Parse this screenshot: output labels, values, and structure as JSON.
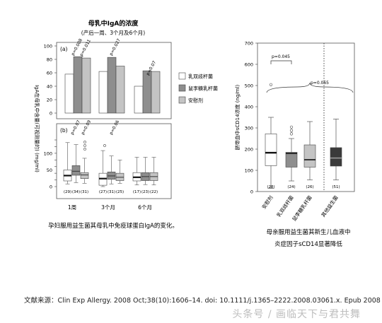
{
  "chart_data": [
    {
      "type": "bar",
      "panel": "a",
      "title": "母乳中IgA的浓度",
      "subtitle": "(产后一周、3个月及6个月)",
      "ylabel": "IgA在母乳中含量(可视测量的) (mg/ml)",
      "ylim": [
        0,
        100
      ],
      "yticks": [
        0,
        20,
        40,
        60,
        80,
        100
      ],
      "categories": [
        "1周",
        "3个月",
        "6个月"
      ],
      "series": [
        {
          "name": "乳双歧杆菌",
          "color": "#ffffff",
          "values": [
            58,
            62,
            40
          ]
        },
        {
          "name": "鼠李糖乳杆菌",
          "color": "#8e8e8e",
          "values": [
            84,
            83,
            63
          ]
        },
        {
          "name": "安慰剂",
          "color": "#c4c4c4",
          "values": [
            82,
            70,
            62
          ]
        }
      ],
      "annotations": [
        "p=0.008",
        "p=0.011",
        "p=0.027",
        "p=0.07"
      ]
    },
    {
      "type": "box",
      "panel": "b",
      "ylim": [
        0,
        140
      ],
      "yticks": [
        0,
        20,
        40,
        60,
        80,
        100,
        120,
        140
      ],
      "categories": [
        "1周",
        "3个月",
        "6个月"
      ],
      "annotations": [
        "p=0.07",
        "p=0.09",
        "p=0.06"
      ],
      "n_labels": [
        [
          "(29)",
          "(34)",
          "(31)"
        ],
        [
          "(27)",
          "(31)",
          "(25)"
        ],
        [
          "(17)",
          "(23)",
          "(22)"
        ]
      ],
      "series": [
        {
          "name": "乳双歧杆菌",
          "color": "#ffffff",
          "boxes": [
            {
              "min": 8,
              "q1": 17,
              "median": 33,
              "q3": 50,
              "max": 132
            },
            {
              "min": 0,
              "q1": 4,
              "median": 24,
              "q3": 40,
              "max": 108
            },
            {
              "min": 5,
              "q1": 17,
              "median": 28,
              "q3": 42,
              "max": 88
            }
          ]
        },
        {
          "name": "鼠李糖乳杆菌",
          "color": "#8e8e8e",
          "boxes": [
            {
              "min": 12,
              "q1": 34,
              "median": 46,
              "q3": 63,
              "max": 126
            },
            {
              "min": 8,
              "q1": 22,
              "median": 32,
              "q3": 44,
              "max": 92
            },
            {
              "min": 6,
              "q1": 18,
              "median": 30,
              "q3": 42,
              "max": 88
            }
          ]
        },
        {
          "name": "安慰剂",
          "color": "#c4c4c4",
          "boxes": [
            {
              "min": 10,
              "q1": 24,
              "median": 35,
              "q3": 42,
              "max": 85
            },
            {
              "min": 10,
              "q1": 18,
              "median": 28,
              "q3": 40,
              "max": 80
            },
            {
              "min": 5,
              "q1": 18,
              "median": 30,
              "q3": 42,
              "max": 88
            }
          ]
        }
      ],
      "caption": "孕妇服用益生菌其母乳中免疫球蛋白IgA的变化。"
    },
    {
      "type": "box",
      "ylabel": "脐带血中sCD14浓度 (ng/ml)",
      "ylim": [
        0,
        700
      ],
      "yticks": [
        0,
        100,
        200,
        300,
        400,
        500,
        600,
        700
      ],
      "categories": [
        "安慰剂",
        "乳双歧杆菌",
        "鼠李糖乳杆菌",
        "其他益生菌"
      ],
      "n_labels": [
        "(28)",
        "(24)",
        "(26)",
        "(51)"
      ],
      "annotations": [
        "p=0.045",
        "p=0.065"
      ],
      "boxes": [
        {
          "color": "#ffffff",
          "min": 15,
          "q1": 122,
          "median": 183,
          "q3": 272,
          "max": 350,
          "outliers": [
            504
          ]
        },
        {
          "color": "#8e8e8e",
          "min": 50,
          "q1": 115,
          "median": 180,
          "q3": 185,
          "max": 250,
          "outliers": [
            272,
            288,
            304
          ]
        },
        {
          "color": "#c4c4c4",
          "min": 55,
          "q1": 115,
          "median": 150,
          "q3": 220,
          "max": 330,
          "outliers": []
        },
        {
          "color": "#3a3a3a",
          "min": 55,
          "q1": 120,
          "median": 158,
          "q3": 207,
          "max": 342,
          "outliers": []
        }
      ],
      "caption": [
        "母亲服用益生菌其新生儿血液中",
        "炎症因子sCD14显著降低"
      ]
    }
  ],
  "source_text": "文献来源：Clin Exp Allergy. 2008 Oct;38(10):1606–14. doi: 10.1111/j.1365–2222.2008.03061.x. Epub 2008 Jul 2.",
  "watermark": "头条号 / 画临天下与君共舞"
}
